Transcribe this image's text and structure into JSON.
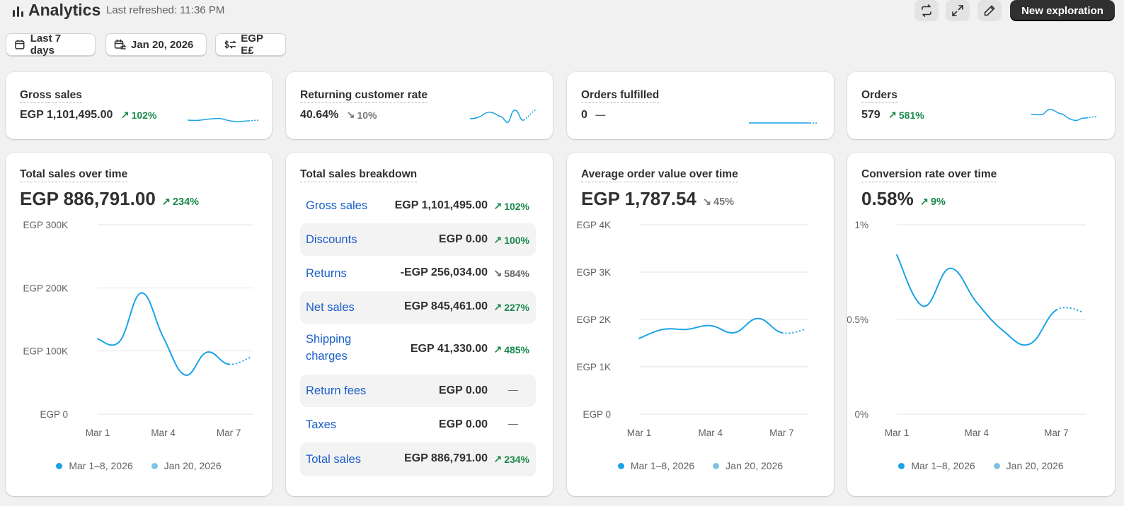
{
  "header": {
    "title": "Analytics",
    "refreshed": "Last refreshed: 11:36 PM",
    "new_exploration_label": "New exploration",
    "actions": [
      "refresh-icon",
      "expand-icon",
      "edit-icon"
    ]
  },
  "filters": {
    "date_range": "Last 7 days",
    "comparison": "Jan 20, 2026",
    "currency": "EGP E£"
  },
  "colors": {
    "accent": "#1aa3e6",
    "comparison": "#7fc4e6",
    "positive": "#1b8a4b",
    "link": "#1a5ec9"
  },
  "metrics": [
    {
      "label": "Gross sales",
      "value": "EGP 1,101,495.00",
      "delta": "102%",
      "direction": "up"
    },
    {
      "label": "Returning customer rate",
      "value": "40.64%",
      "delta": "10%",
      "direction": "down"
    },
    {
      "label": "Orders fulfilled",
      "value": "0",
      "delta": "—",
      "direction": "flat"
    },
    {
      "label": "Orders",
      "value": "579",
      "delta": "581%",
      "direction": "up"
    }
  ],
  "total_sales": {
    "label": "Total sales over time",
    "value": "EGP 886,791.00",
    "delta": "234%",
    "direction": "up"
  },
  "breakdown": {
    "label": "Total sales breakdown",
    "rows": [
      {
        "label": "Gross sales",
        "value": "EGP 1,101,495.00",
        "delta": "102%",
        "direction": "up"
      },
      {
        "label": "Discounts",
        "value": "EGP 0.00",
        "delta": "100%",
        "direction": "up"
      },
      {
        "label": "Returns",
        "value": "-EGP 256,034.00",
        "delta": "584%",
        "direction": "down"
      },
      {
        "label": "Net sales",
        "value": "EGP 845,461.00",
        "delta": "227%",
        "direction": "up"
      },
      {
        "label_line1": "Shipping",
        "label_line2": "charges",
        "value": "EGP 41,330.00",
        "delta": "485%",
        "direction": "up"
      },
      {
        "label": "Return fees",
        "value": "EGP 0.00",
        "delta": "—",
        "direction": "flat"
      },
      {
        "label": "Taxes",
        "value": "EGP 0.00",
        "delta": "—",
        "direction": "flat"
      },
      {
        "label": "Total sales",
        "value": "EGP 886,791.00",
        "delta": "234%",
        "direction": "up"
      }
    ]
  },
  "aov": {
    "label": "Average order value over time",
    "value": "EGP 1,787.54",
    "delta": "45%",
    "direction": "down"
  },
  "conversion": {
    "label": "Conversion rate over time",
    "value": "0.58%",
    "delta": "9%",
    "direction": "up"
  },
  "legend": {
    "current": "Mar 1–8, 2026",
    "previous": "Jan 20, 2026"
  },
  "chart_data": [
    {
      "type": "line",
      "title": "Total sales over time",
      "x": [
        "Mar 1",
        "Mar 2",
        "Mar 3",
        "Mar 4",
        "Mar 5",
        "Mar 6",
        "Mar 7",
        "Mar 8"
      ],
      "x_ticks": [
        "Mar 1",
        "Mar 4",
        "Mar 7"
      ],
      "y_ticks": [
        "EGP 0",
        "EGP 100K",
        "EGP 200K",
        "EGP 300K"
      ],
      "ylim": [
        0,
        300000
      ],
      "series": [
        {
          "name": "Mar 1–8, 2026",
          "values": [
            119000,
            115000,
            192000,
            122000,
            62000,
            98000,
            79000,
            90000
          ]
        }
      ],
      "grid": true,
      "legend_position": "bottom"
    },
    {
      "type": "line",
      "title": "Average order value over time",
      "x": [
        "Mar 1",
        "Mar 2",
        "Mar 3",
        "Mar 4",
        "Mar 5",
        "Mar 6",
        "Mar 7",
        "Mar 8"
      ],
      "x_ticks": [
        "Mar 1",
        "Mar 4",
        "Mar 7"
      ],
      "y_ticks": [
        "EGP 0",
        "EGP 1K",
        "EGP 2K",
        "EGP 3K",
        "EGP 4K"
      ],
      "ylim": [
        0,
        4000
      ],
      "series": [
        {
          "name": "Mar 1–8, 2026",
          "values": [
            1600,
            1790,
            1790,
            1870,
            1720,
            2020,
            1720,
            1790
          ]
        }
      ],
      "grid": true,
      "legend_position": "bottom"
    },
    {
      "type": "line",
      "title": "Conversion rate over time",
      "x": [
        "Mar 1",
        "Mar 2",
        "Mar 3",
        "Mar 4",
        "Mar 5",
        "Mar 6",
        "Mar 7",
        "Mar 8"
      ],
      "x_ticks": [
        "Mar 1",
        "Mar 4",
        "Mar 7"
      ],
      "y_ticks": [
        "0%",
        "0.5%",
        "1%"
      ],
      "ylim": [
        0,
        1
      ],
      "series": [
        {
          "name": "Mar 1–8, 2026",
          "values": [
            0.84,
            0.57,
            0.77,
            0.59,
            0.44,
            0.37,
            0.55,
            0.54
          ]
        }
      ],
      "grid": true,
      "legend_position": "bottom"
    }
  ]
}
